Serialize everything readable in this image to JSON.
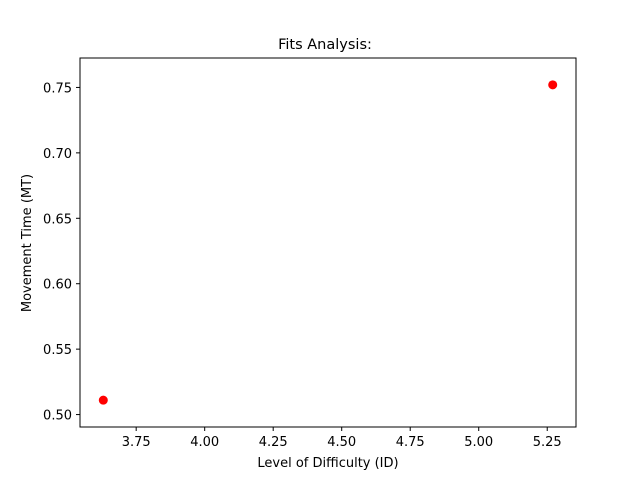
{
  "chart_data": {
    "type": "scatter",
    "title": "Fits Analysis:",
    "xlabel": "Level of Difficulty (ID)",
    "ylabel": "Movement Time (MT)",
    "xlim": [
      3.545,
      5.355
    ],
    "ylim": [
      0.4905,
      0.7725
    ],
    "xticks": [
      3.75,
      4.0,
      4.25,
      4.5,
      4.75,
      5.0,
      5.25
    ],
    "xtick_labels": [
      "3.75",
      "4.00",
      "4.25",
      "4.50",
      "4.75",
      "5.00",
      "5.25"
    ],
    "yticks": [
      0.5,
      0.55,
      0.6,
      0.65,
      0.7,
      0.75
    ],
    "ytick_labels": [
      "0.50",
      "0.55",
      "0.60",
      "0.65",
      "0.70",
      "0.75"
    ],
    "grid": false,
    "points": [
      {
        "x": 3.63,
        "y": 0.511
      },
      {
        "x": 5.27,
        "y": 0.752
      }
    ],
    "marker_color": "#ff0000"
  }
}
